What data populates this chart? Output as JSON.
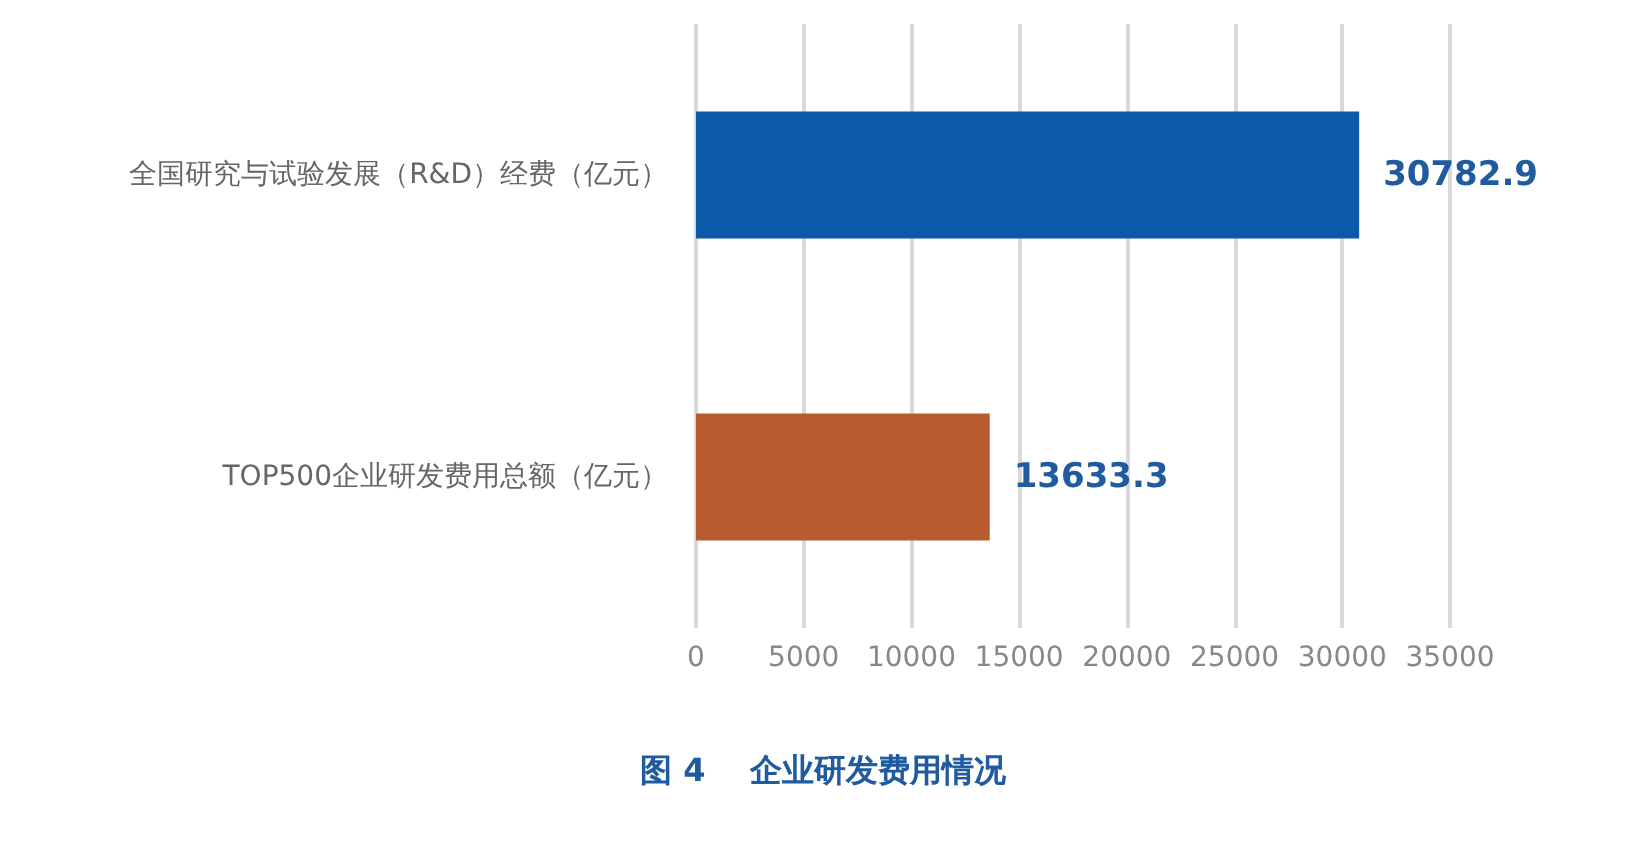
{
  "chart_data": {
    "type": "bar",
    "orientation": "horizontal",
    "title": "图 4    企业研发费用情况",
    "categories": [
      "全国研究与试验发展（R&D）经费（亿元）",
      "TOP500企业研发费用总额（亿元）"
    ],
    "values": [
      30782.9,
      13633.3
    ],
    "colors": [
      "#0a5aa8",
      "#b85b2e"
    ],
    "xlim": [
      0,
      35000
    ],
    "xticks": [
      0,
      5000,
      10000,
      15000,
      20000,
      25000,
      30000,
      35000
    ],
    "grid": "x",
    "data_labels": true
  }
}
